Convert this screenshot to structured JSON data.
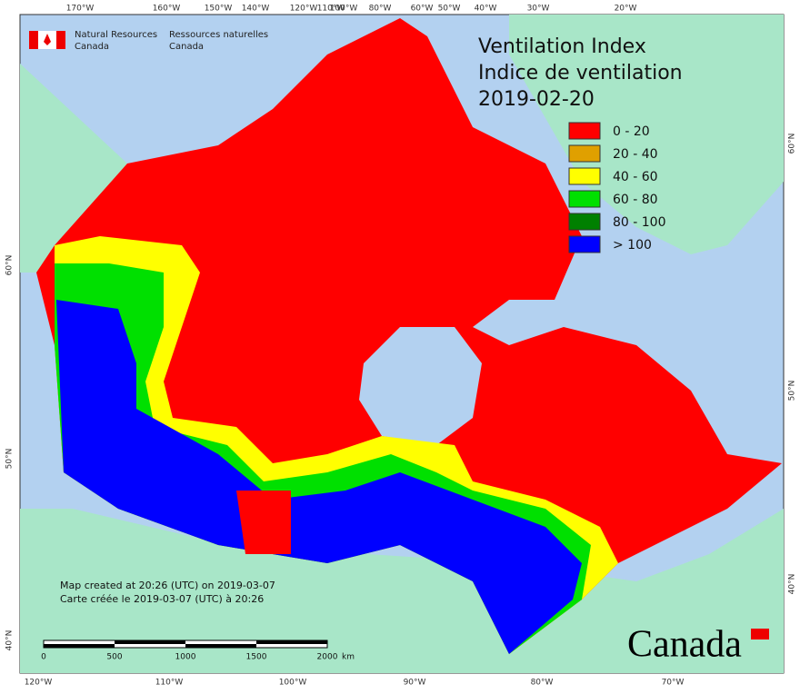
{
  "header": {
    "org_en": [
      "Natural Resources",
      "Canada"
    ],
    "org_fr": [
      "Ressources naturelles",
      "Canada"
    ]
  },
  "title": {
    "lines": [
      "Ventilation Index",
      "Indice de ventilation",
      "2019-02-20"
    ]
  },
  "legend": [
    {
      "label": "0 - 20",
      "color": "#ff0000"
    },
    {
      "label": "20 - 40",
      "color": "#e0a000"
    },
    {
      "label": "40 - 60",
      "color": "#ffff00"
    },
    {
      "label": "60 - 80",
      "color": "#00e000"
    },
    {
      "label": "80 - 100",
      "color": "#008000"
    },
    {
      "label": "> 100",
      "color": "#0000ff"
    }
  ],
  "graticule": {
    "top": [
      "170°W",
      "160°W",
      "150°W",
      "140°W",
      "120°W",
      "110°W",
      "100°W",
      "80°W",
      "60°W",
      "50°W",
      "40°W",
      "30°W",
      "20°W"
    ],
    "bottom": [
      "120°W",
      "110°W",
      "100°W",
      "90°W",
      "80°W",
      "70°W"
    ],
    "left": [
      "60°N",
      "50°N",
      "40°N"
    ],
    "right": [
      "60°N",
      "50°N",
      "40°N"
    ]
  },
  "credits": [
    "Map created at 20:26 (UTC) on 2019-03-07",
    "Carte créée le 2019-03-07 (UTC) à 20:26"
  ],
  "scale_bar": {
    "labels": [
      "0",
      "500",
      "1000",
      "1500",
      "2000"
    ],
    "unit": "km"
  },
  "wordmark": "Canada"
}
